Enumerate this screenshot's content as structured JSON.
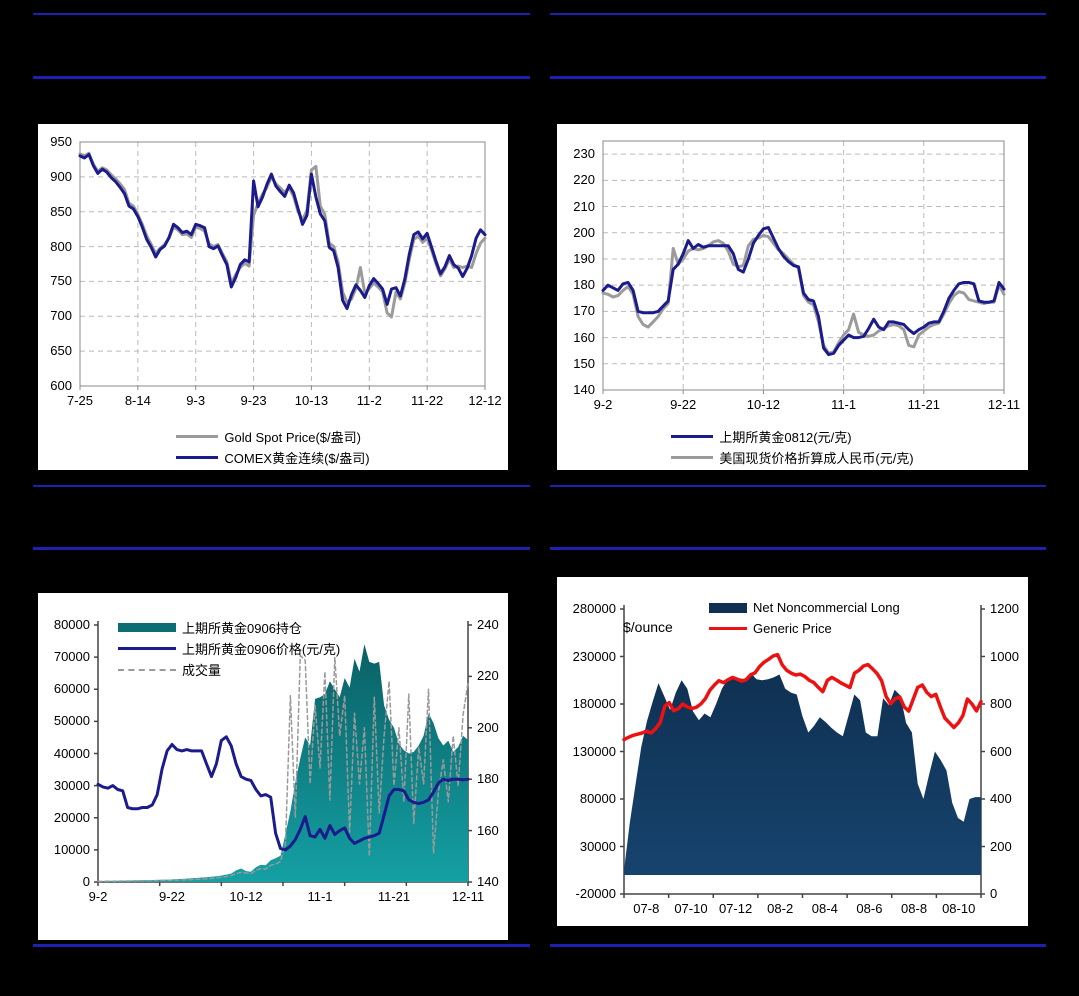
{
  "page": {
    "background": "#000000",
    "separator_color": "#2020b0"
  },
  "chart_data": [
    {
      "id": "comex-gold",
      "type": "line",
      "categories": [
        "7-25",
        "8-14",
        "9-3",
        "9-23",
        "10-13",
        "11-2",
        "11-22",
        "12-12"
      ],
      "y_left": {
        "min": 600,
        "max": 950,
        "step": 50,
        "ticks": [
          950,
          900,
          850,
          800,
          750,
          700,
          650,
          600
        ]
      },
      "grid": "dashed",
      "legend": [
        {
          "label": "Gold Spot Price($/盎司)",
          "color": "#9b9b9b"
        },
        {
          "label": "COMEX黄金连续($/盎司)",
          "color": "#1b1b8c"
        }
      ],
      "series": [
        {
          "name": "Gold Spot Price($/盎司)",
          "color": "#9b9b9b",
          "w": 3,
          "axis": "left",
          "values": [
            933,
            930,
            934,
            918,
            908,
            913,
            910,
            903,
            897,
            890,
            882,
            862,
            858,
            846,
            832,
            815,
            803,
            790,
            798,
            803,
            812,
            828,
            824,
            817,
            818,
            813,
            828,
            826,
            822,
            804,
            800,
            803,
            790,
            778,
            748,
            760,
            770,
            776,
            772,
            845,
            862,
            875,
            885,
            900,
            890,
            884,
            878,
            884,
            872,
            850,
            838,
            852,
            910,
            915,
            858,
            846,
            805,
            800,
            778,
            735,
            720,
            725,
            740,
            770,
            733,
            740,
            748,
            742,
            735,
            705,
            699,
            735,
            725,
            748,
            782,
            810,
            815,
            806,
            812,
            795,
            775,
            758,
            768,
            782,
            770,
            772,
            770,
            772,
            770,
            790,
            805,
            812
          ]
        },
        {
          "name": "COMEX黄金连续($/盎司)",
          "color": "#1b1b8c",
          "w": 3,
          "axis": "left",
          "values": [
            930,
            927,
            932,
            916,
            905,
            911,
            907,
            899,
            893,
            885,
            876,
            858,
            854,
            843,
            828,
            810,
            799,
            785,
            796,
            801,
            813,
            832,
            827,
            820,
            822,
            817,
            832,
            830,
            827,
            800,
            797,
            801,
            787,
            774,
            742,
            756,
            774,
            781,
            778,
            894,
            857,
            871,
            889,
            904,
            887,
            879,
            872,
            888,
            877,
            854,
            832,
            845,
            904,
            871,
            847,
            837,
            799,
            794,
            770,
            723,
            711,
            731,
            745,
            737,
            727,
            744,
            754,
            747,
            739,
            717,
            739,
            741,
            729,
            754,
            789,
            817,
            821,
            811,
            819,
            799,
            779,
            761,
            771,
            787,
            774,
            769,
            757,
            769,
            787,
            812,
            824,
            817
          ]
        }
      ]
    },
    {
      "id": "shfe-gold-0812",
      "type": "line",
      "categories": [
        "9-2",
        "9-22",
        "10-12",
        "11-1",
        "11-21",
        "12-11"
      ],
      "y_left": {
        "min": 140,
        "max": 230,
        "top": 235,
        "step": 10,
        "ticks": [
          230,
          220,
          210,
          200,
          190,
          180,
          170,
          160,
          150,
          140
        ]
      },
      "grid": "dashed",
      "legend": [
        {
          "label": "上期所黄金0812(元/克)",
          "color": "#1b1b8c"
        },
        {
          "label": "美国现货价格折算成人民币(元/克)",
          "color": "#9b9b9b"
        }
      ],
      "series": [
        {
          "name": "美国现货价格折算成人民币(元/克)",
          "color": "#9b9b9b",
          "w": 3,
          "axis": "left",
          "values": [
            177,
            176.5,
            175.5,
            176,
            178,
            179.5,
            176.5,
            168,
            165,
            164,
            166,
            168,
            171,
            173,
            194,
            188,
            190,
            193,
            194,
            193.5,
            194,
            195,
            196.5,
            197,
            196,
            193,
            188,
            187,
            187.5,
            195,
            197.5,
            198,
            199,
            198.5,
            196,
            193.5,
            192,
            190,
            188,
            186.5,
            176,
            173.5,
            172.5,
            166,
            157,
            154,
            154.5,
            158,
            161,
            163,
            169,
            162,
            161,
            160.5,
            161,
            162.5,
            163.5,
            164.5,
            165,
            164.5,
            163,
            157,
            156.5,
            161,
            162.5,
            164,
            165,
            165.5,
            169,
            173,
            176,
            177.5,
            177,
            174.5,
            174,
            173.5,
            173,
            173.5,
            173.5,
            180,
            176.5
          ]
        },
        {
          "name": "上期所黄金0812(元/克)",
          "color": "#1b1b8c",
          "w": 3,
          "axis": "left",
          "values": [
            178,
            180,
            179,
            178,
            180.5,
            181,
            178,
            170,
            169.5,
            169.5,
            169.5,
            170,
            172,
            174,
            186,
            188,
            192,
            197,
            194,
            195.5,
            194.5,
            195,
            195,
            195,
            195,
            195,
            192,
            186,
            185,
            190,
            196,
            199,
            201.5,
            202,
            198,
            194,
            191,
            189,
            187.5,
            187,
            177,
            174.5,
            174,
            168,
            156,
            153.5,
            154,
            157,
            159,
            161,
            160,
            160,
            160.5,
            163.5,
            167,
            164,
            163,
            166,
            166,
            165.5,
            165,
            163,
            161.5,
            163,
            164,
            165.5,
            166,
            166,
            170,
            175,
            178,
            180.5,
            181,
            181,
            180.5,
            174,
            173.5,
            173.5,
            174,
            181,
            178.5
          ]
        }
      ]
    },
    {
      "id": "shfe-gold-0906",
      "type": "area-line",
      "categories": [
        "9-2",
        "9-22",
        "10-12",
        "11-1",
        "11-21",
        "12-11"
      ],
      "y_left": {
        "min": 0,
        "max": 80000,
        "step": 10000,
        "ticks": [
          80000,
          70000,
          60000,
          50000,
          40000,
          30000,
          20000,
          10000,
          0
        ]
      },
      "y_right": {
        "min": 140,
        "max": 240,
        "step": 20,
        "ticks": [
          240,
          220,
          200,
          180,
          160,
          140
        ]
      },
      "grid": "none",
      "legend": [
        {
          "label": "上期所黄金0906持仓",
          "color": "#0c6d73"
        },
        {
          "label": "上期所黄金0906价格(元/克)",
          "color": "#1b1b8c"
        },
        {
          "label": "成交量",
          "color": "#9a9a9a"
        }
      ],
      "series": [
        {
          "name": "上期所黄金0906持仓",
          "type": "area",
          "fill": "#095b60",
          "fill2": "#14a0a4",
          "axis": "left",
          "base": 0,
          "values": [
            300,
            320,
            350,
            380,
            400,
            420,
            450,
            480,
            500,
            520,
            560,
            600,
            640,
            700,
            760,
            820,
            900,
            980,
            1050,
            1150,
            1250,
            1400,
            1500,
            1650,
            1800,
            2000,
            2300,
            2600,
            3600,
            4200,
            3400,
            3200,
            4600,
            5400,
            5200,
            6800,
            7400,
            8200,
            15000,
            22000,
            31000,
            38500,
            45000,
            42500,
            57000,
            57500,
            58500,
            62500,
            60000,
            57500,
            63500,
            60500,
            69500,
            65500,
            74000,
            68500,
            68000,
            68500,
            55000,
            50500,
            48000,
            43000,
            41000,
            40000,
            40500,
            42500,
            45500,
            52500,
            49500,
            44800,
            42500,
            44000,
            40500,
            42000,
            45500,
            44200
          ]
        },
        {
          "name": "成交量",
          "color": "#9a9a9a",
          "w": 1.5,
          "dash": true,
          "axis": "left",
          "values": [
            200,
            220,
            250,
            260,
            280,
            300,
            320,
            350,
            350,
            380,
            400,
            420,
            450,
            500,
            520,
            560,
            600,
            650,
            700,
            760,
            820,
            900,
            1000,
            1100,
            1300,
            1500,
            1700,
            2000,
            2600,
            3000,
            2800,
            2600,
            3600,
            4200,
            4000,
            5200,
            5600,
            6400,
            12000,
            58000,
            20000,
            70500,
            69000,
            30500,
            55000,
            35500,
            65500,
            25500,
            70000,
            45500,
            58000,
            15500,
            52500,
            30500,
            48000,
            8000,
            57500,
            21500,
            45500,
            62500,
            30000,
            48000,
            25000,
            58500,
            18000,
            42000,
            30500,
            60000,
            9000,
            28000,
            38000,
            25000,
            45500,
            30000,
            52000,
            62000
          ]
        },
        {
          "name": "上期所黄金0906价格(元/克)",
          "color": "#1b1b8c",
          "w": 3,
          "axis": "right",
          "values": [
            178,
            177,
            176.5,
            177.5,
            176,
            175.5,
            169,
            168.5,
            168.5,
            169,
            169,
            170,
            174,
            184,
            191,
            193.5,
            191.5,
            191,
            191.5,
            191,
            191,
            191,
            186,
            181,
            186,
            195,
            196.5,
            193,
            186,
            181,
            180,
            179.5,
            176,
            173.5,
            174,
            173,
            159,
            153,
            152.5,
            154,
            156.5,
            160.5,
            165.5,
            158,
            157.5,
            160.5,
            157,
            162,
            158.5,
            160,
            161,
            157,
            155,
            156,
            157,
            157.5,
            158,
            159,
            166,
            173.5,
            176,
            176,
            175.5,
            172,
            171,
            170.5,
            171,
            172,
            175,
            178.5,
            180,
            179.5,
            180,
            180,
            179.8,
            180
          ]
        }
      ]
    },
    {
      "id": "net-noncommercial-long",
      "type": "area-line",
      "unit_label": "$/ounce",
      "categories": [
        "07-8",
        "07-10",
        "07-12",
        "08-2",
        "08-4",
        "08-6",
        "08-8",
        "08-10"
      ],
      "x_inset": true,
      "y_left": {
        "min": -20000,
        "max": 280000,
        "step": 50000,
        "ticks": [
          280000,
          230000,
          180000,
          130000,
          80000,
          30000,
          -20000
        ]
      },
      "y_right": {
        "min": 0,
        "max": 1200,
        "step": 200,
        "ticks": [
          1200,
          1000,
          800,
          600,
          400,
          200,
          0
        ]
      },
      "grid": "none",
      "legend": [
        {
          "label": "Net Noncommercial Long",
          "color": "#112f52"
        },
        {
          "label": "Generic Price",
          "color": "#ee1111"
        }
      ],
      "series": [
        {
          "name": "Net Noncommercial Long",
          "type": "area",
          "fill": "#0d2b4a",
          "fill2": "#174570",
          "axis": "left",
          "base": 0,
          "values": [
            5000,
            55000,
            95000,
            135000,
            162000,
            183000,
            202000,
            188000,
            174000,
            192000,
            205000,
            196000,
            172000,
            163000,
            170000,
            166000,
            180000,
            196000,
            206000,
            208000,
            207000,
            206000,
            213000,
            206000,
            205000,
            206000,
            208000,
            211000,
            196000,
            192000,
            190000,
            167000,
            150000,
            157000,
            166000,
            161000,
            155000,
            150000,
            146000,
            168000,
            190000,
            184000,
            150000,
            146000,
            146000,
            186000,
            179000,
            195000,
            189000,
            160000,
            150000,
            96000,
            80000,
            106000,
            130000,
            121000,
            110000,
            76000,
            60000,
            56000,
            80000,
            82000,
            82000
          ]
        },
        {
          "name": "Generic Price",
          "color": "#ee1111",
          "w": 3.5,
          "axis": "right",
          "values": [
            650,
            660,
            668,
            673,
            678,
            686,
            678,
            696,
            722,
            790,
            806,
            772,
            780,
            800,
            788,
            781,
            786,
            800,
            822,
            858,
            880,
            898,
            890,
            902,
            912,
            905,
            896,
            902,
            922,
            932,
            958,
            976,
            988,
            1002,
            1008,
            965,
            942,
            930,
            922,
            926,
            916,
            900,
            890,
            870,
            852,
            900,
            912,
            901,
            889,
            879,
            869,
            930,
            942,
            960,
            966,
            948,
            928,
            898,
            832,
            801,
            822,
            830,
            788,
            770,
            820,
            870,
            880,
            849,
            831,
            841,
            789,
            741,
            721,
            701,
            721,
            751,
            821,
            800,
            771,
            810
          ]
        }
      ]
    }
  ]
}
